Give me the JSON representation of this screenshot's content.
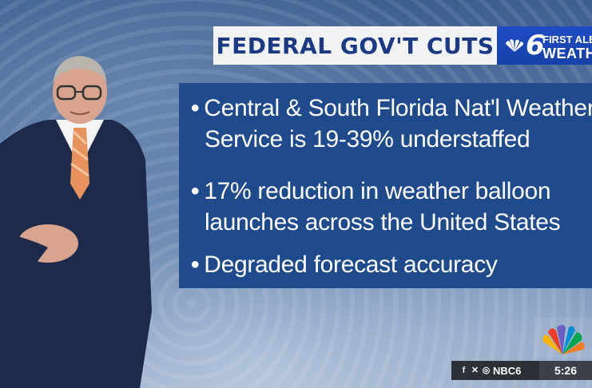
{
  "headline": {
    "title": "FEDERAL GOV'T CUTS"
  },
  "logo": {
    "number": "6",
    "line1": "FIRST ALERT",
    "line2": "WEATHER"
  },
  "bullets": [
    {
      "line1": "Central & South Florida Nat'l Weather",
      "line2": "Service is 19-39% understaffed"
    },
    {
      "line1": "17% reduction in weather balloon",
      "line2": "launches across the United States"
    },
    {
      "line1": "Degraded forecast accuracy",
      "line2": ""
    }
  ],
  "ticker": {
    "handle": "NBC6",
    "time": "5:26"
  },
  "icons": [
    "facebook-icon",
    "x-icon",
    "instagram-icon",
    "nbc-peacock-icon"
  ],
  "colors": {
    "title_bg": "#f2f3f5",
    "title_text": "#1a3a86",
    "panel": "#1f4a8c",
    "logo_bg": "#1541a8"
  }
}
